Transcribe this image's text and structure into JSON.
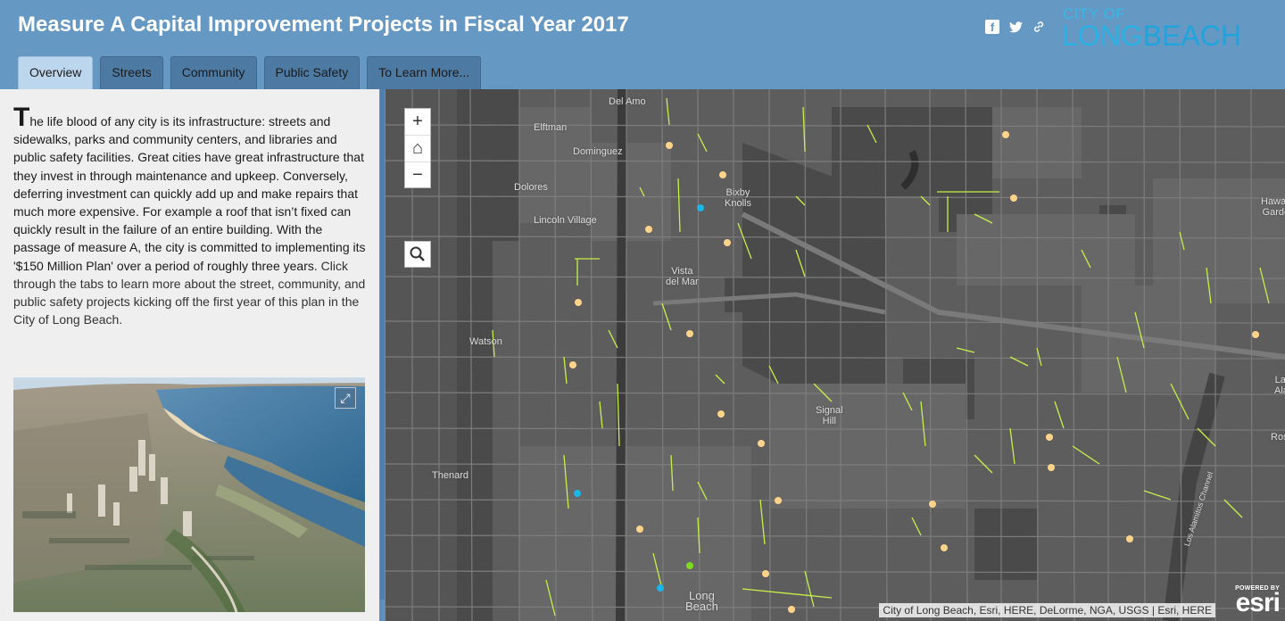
{
  "header": {
    "title": "Measure A Capital Improvement Projects in Fiscal Year 2017",
    "logo_line1": "CITY OF",
    "logo_long": "LONG",
    "logo_beach": "BEACH"
  },
  "share_icons": [
    "facebook-icon",
    "twitter-icon",
    "link-icon"
  ],
  "tabs": [
    {
      "label": "Overview",
      "active": true
    },
    {
      "label": "Streets",
      "active": false
    },
    {
      "label": "Community",
      "active": false
    },
    {
      "label": "Public Safety",
      "active": false
    },
    {
      "label": "To Learn More...",
      "active": false
    }
  ],
  "panel": {
    "drop_cap": "T",
    "intro": "he life blood of any city is its infrastructure: streets and sidewalks, parks and community centers, and libraries and public safety facilities. Great cities have great infrastructure that they invest in through maintenance and upkeep. Conversely, deferring investment can quickly add up and make repairs that much more expensive. For example a roof that isn’t fixed can quickly result in the failure of an entire building. With the passage of measure A, the city is committed to implementing its '$150 Million Plan' over a period of roughly three years.",
    "link_text": "Click through the tabs to learn more about the street, community, and public safety projects kicking off the first year of this plan in the City of Long Beach."
  },
  "map": {
    "zoom_in": "+",
    "home": "⌂",
    "zoom_out": "−",
    "attribution": "City of Long Beach, Esri, HERE, DeLorme, NGA, USGS | Esri, HERE",
    "esri_powered": "POWERED BY",
    "esri_logo": "esri",
    "labels": [
      {
        "text": "Del Amo",
        "name": "label-del-amo"
      },
      {
        "text": "Elftman",
        "name": "label-elftman"
      },
      {
        "text": "Dominguez",
        "name": "label-dominguez"
      },
      {
        "text": "Dolores",
        "name": "label-dolores"
      },
      {
        "text": "Lincoln Village",
        "name": "label-lincoln-village"
      },
      {
        "text": "Bixby\nKnolls",
        "name": "label-bixby-knolls"
      },
      {
        "text": "Vista\ndel Mar",
        "name": "label-vista-del-mar"
      },
      {
        "text": "Watson",
        "name": "label-watson"
      },
      {
        "text": "Signal\nHill",
        "name": "label-signal-hill"
      },
      {
        "text": "Thenard",
        "name": "label-thenard"
      },
      {
        "text": "Long\nBeach",
        "name": "label-long-beach"
      },
      {
        "text": "Hawaiian\nGardens",
        "name": "label-hawaiian-gardens"
      },
      {
        "text": "Rossm",
        "name": "label-rossmoor"
      },
      {
        "text": "Lal\nAla",
        "name": "label-los-alamitos"
      },
      {
        "text": "Los Alamitos Channel",
        "name": "label-los-alamitos-channel"
      }
    ],
    "colors": {
      "community": "#ffd38a",
      "public_safety": "#1ab6ea",
      "street": "#c7f04a",
      "park": "#7ddc1f"
    }
  }
}
